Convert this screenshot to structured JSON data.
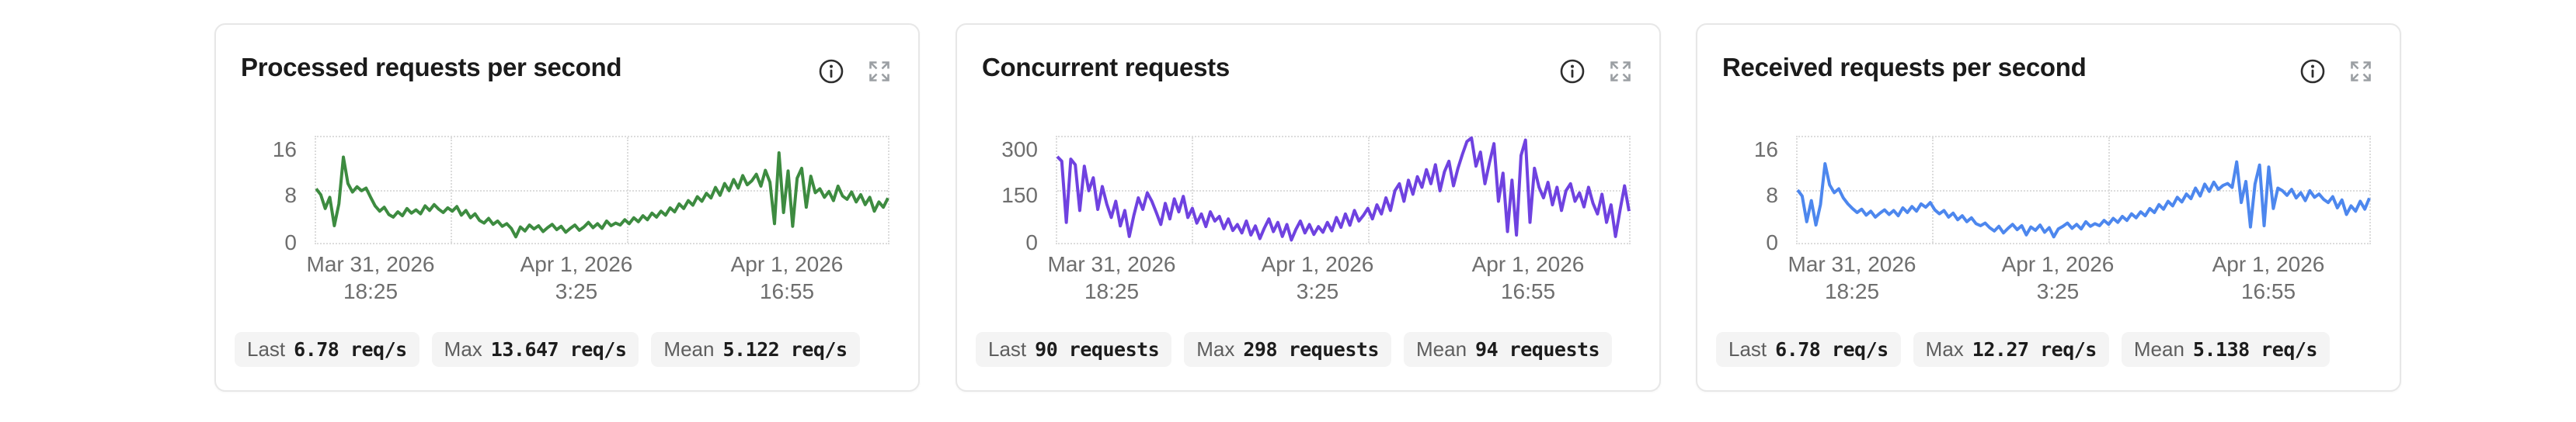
{
  "canvas": {
    "background": "#ffffff"
  },
  "icons": {
    "info": "info-icon",
    "expand": "expand-icon"
  },
  "grid_color": "#dcdcdc",
  "chart_data": [
    {
      "type": "line",
      "title": "Processed requests per second",
      "unit": "req/s",
      "line_color": "#3d8b40",
      "ylim": [
        0,
        16
      ],
      "y_tick_labels": [
        "16",
        "8",
        "0"
      ],
      "x_tick_labels": [
        [
          "Mar 31, 2026",
          "18:25"
        ],
        [
          "Apr 1, 2026",
          "3:25"
        ],
        [
          "Apr 1, 2026",
          "16:55"
        ]
      ],
      "grid": "dotted",
      "legend": "none",
      "stats": [
        {
          "label": "Last",
          "value": "6.78 req/s"
        },
        {
          "label": "Max",
          "value": "13.647 req/s"
        },
        {
          "label": "Mean",
          "value": "5.122 req/s"
        }
      ],
      "values": [
        8.2,
        7.3,
        5.2,
        6.9,
        2.6,
        5.9,
        13.0,
        9.0,
        7.7,
        8.5,
        7.9,
        8.3,
        6.9,
        5.6,
        4.8,
        5.4,
        4.3,
        3.9,
        4.7,
        4.1,
        5.2,
        4.5,
        5.0,
        4.4,
        5.6,
        4.9,
        5.8,
        5.1,
        4.6,
        5.3,
        4.8,
        5.5,
        4.2,
        4.9,
        3.8,
        4.4,
        3.4,
        3.0,
        3.7,
        2.8,
        3.3,
        2.5,
        2.9,
        2.2,
        0.9,
        2.4,
        1.8,
        2.7,
        2.1,
        2.6,
        1.7,
        2.3,
        2.8,
        2.0,
        2.5,
        1.6,
        2.2,
        2.7,
        1.9,
        2.4,
        3.1,
        2.3,
        2.9,
        2.2,
        3.3,
        2.6,
        3.0,
        2.7,
        3.5,
        2.9,
        3.8,
        3.2,
        4.1,
        3.5,
        4.5,
        3.9,
        4.8,
        4.2,
        5.3,
        4.7,
        5.9,
        5.2,
        6.4,
        5.7,
        7.0,
        6.3,
        7.5,
        6.8,
        8.4,
        7.2,
        9.0,
        7.9,
        9.6,
        8.3,
        10.2,
        8.8,
        9.4,
        10.4,
        8.6,
        11.0,
        9.2,
        2.9,
        13.65,
        4.6,
        10.9,
        2.5,
        9.8,
        11.3,
        5.4,
        10.1,
        7.6,
        8.2,
        6.9,
        7.8,
        6.4,
        8.6,
        7.1,
        6.6,
        7.7,
        6.2,
        7.3,
        5.8,
        6.9,
        4.8,
        6.2,
        5.4,
        6.78
      ]
    },
    {
      "type": "line",
      "title": "Concurrent requests",
      "unit": "requests",
      "line_color": "#6f42e0",
      "ylim": [
        0,
        300
      ],
      "y_tick_labels": [
        "300",
        "150",
        "0"
      ],
      "x_tick_labels": [
        [
          "Mar 31, 2026",
          "18:25"
        ],
        [
          "Apr 1, 2026",
          "3:25"
        ],
        [
          "Apr 1, 2026",
          "16:55"
        ]
      ],
      "grid": "dotted",
      "legend": "none",
      "stats": [
        {
          "label": "Last",
          "value": "90 requests"
        },
        {
          "label": "Max",
          "value": "298 requests"
        },
        {
          "label": "Mean",
          "value": "94 requests"
        }
      ],
      "values": [
        245,
        232,
        58,
        238,
        222,
        92,
        218,
        148,
        185,
        95,
        160,
        110,
        72,
        118,
        48,
        92,
        18,
        78,
        128,
        95,
        142,
        118,
        86,
        52,
        112,
        68,
        125,
        88,
        132,
        72,
        98,
        56,
        82,
        46,
        88,
        62,
        75,
        40,
        68,
        35,
        52,
        28,
        62,
        22,
        48,
        12,
        42,
        68,
        32,
        58,
        18,
        52,
        8,
        38,
        62,
        28,
        52,
        24,
        46,
        30,
        58,
        34,
        72,
        44,
        82,
        50,
        92,
        62,
        78,
        98,
        68,
        108,
        82,
        128,
        92,
        148,
        168,
        118,
        178,
        138,
        188,
        158,
        208,
        168,
        222,
        148,
        202,
        232,
        162,
        212,
        252,
        288,
        298,
        218,
        258,
        168,
        228,
        282,
        118,
        198,
        32,
        178,
        22,
        248,
        292,
        58,
        212,
        158,
        128,
        172,
        108,
        158,
        92,
        148,
        168,
        118,
        142,
        102,
        158,
        112,
        82,
        138,
        58,
        108,
        18,
        92,
        162,
        90
      ]
    },
    {
      "type": "line",
      "title": "Received requests per second",
      "unit": "req/s",
      "line_color": "#4d87ee",
      "ylim": [
        0,
        16
      ],
      "y_tick_labels": [
        "16",
        "8",
        "0"
      ],
      "x_tick_labels": [
        [
          "Mar 31, 2026",
          "18:25"
        ],
        [
          "Apr 1, 2026",
          "3:25"
        ],
        [
          "Apr 1, 2026",
          "16:55"
        ]
      ],
      "grid": "dotted",
      "legend": "none",
      "stats": [
        {
          "label": "Last",
          "value": "6.78 req/s"
        },
        {
          "label": "Max",
          "value": "12.27 req/s"
        },
        {
          "label": "Mean",
          "value": "5.138 req/s"
        }
      ],
      "values": [
        8.0,
        7.1,
        3.2,
        6.4,
        2.7,
        5.8,
        12.0,
        8.8,
        7.6,
        8.2,
        6.8,
        5.9,
        5.2,
        4.6,
        5.1,
        4.2,
        4.8,
        3.9,
        4.5,
        5.0,
        4.3,
        4.9,
        4.1,
        5.3,
        4.6,
        5.5,
        4.8,
        5.9,
        5.4,
        6.1,
        5.0,
        4.4,
        4.9,
        3.9,
        4.5,
        3.5,
        4.1,
        3.2,
        3.8,
        2.9,
        2.6,
        3.0,
        2.3,
        1.8,
        2.5,
        1.5,
        2.2,
        2.8,
        2.0,
        2.6,
        1.2,
        2.4,
        1.9,
        2.7,
        1.6,
        2.3,
        0.9,
        2.1,
        2.5,
        3.0,
        2.2,
        2.8,
        2.1,
        3.2,
        2.5,
        2.9,
        2.6,
        3.4,
        2.8,
        3.7,
        3.1,
        4.0,
        3.4,
        4.4,
        3.8,
        4.7,
        4.1,
        5.2,
        4.6,
        5.8,
        5.1,
        6.3,
        5.6,
        6.9,
        6.2,
        7.4,
        6.7,
        8.3,
        7.1,
        8.9,
        7.8,
        9.2,
        8.1,
        8.7,
        9.0,
        8.4,
        12.27,
        6.1,
        9.3,
        2.4,
        8.9,
        11.8,
        2.6,
        11.5,
        5.2,
        8.3,
        7.9,
        7.2,
        8.1,
        6.8,
        7.6,
        6.4,
        7.9,
        6.9,
        7.4,
        6.6,
        6.1,
        7.0,
        5.3,
        6.5,
        4.3,
        5.6,
        4.8,
        6.3,
        5.1,
        6.78
      ]
    }
  ]
}
